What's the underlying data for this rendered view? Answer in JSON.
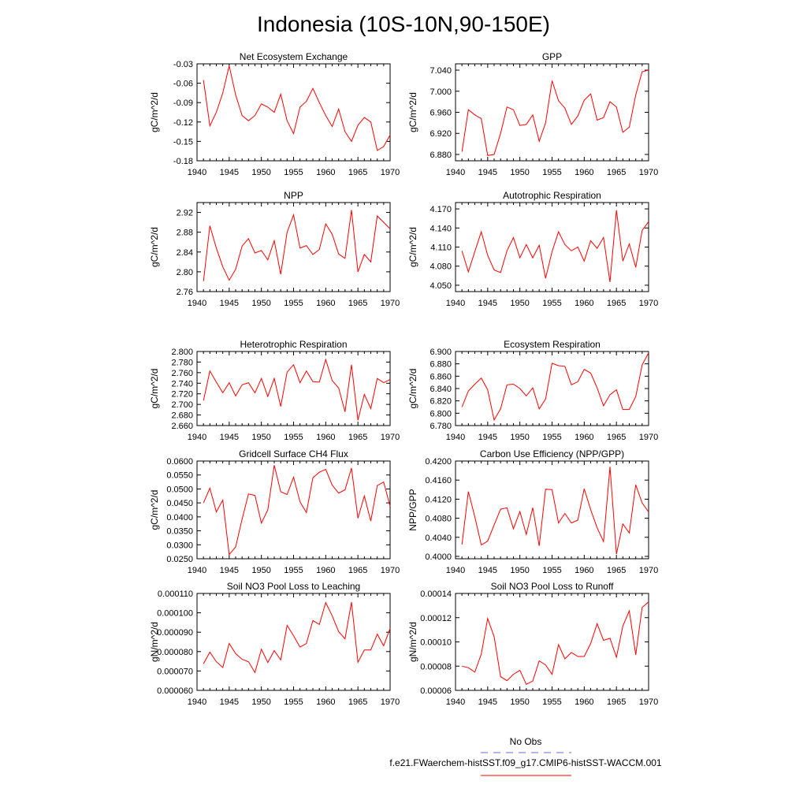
{
  "title": "Indonesia (10S-10N,90-150E)",
  "colors": {
    "model": "#ff0000",
    "obs": "#6a6ae6",
    "axis": "#000000"
  },
  "legend": {
    "obs_label": "No Obs",
    "model_label": "f.e21.FWaerchem-histSST.f09_g17.CMIP6-histSST-WACCM.001"
  },
  "chart_data": [
    {
      "type": "line",
      "title": "Net Ecosystem Exchange",
      "ylabel": "gC/m^2/d",
      "xlim": [
        1940,
        1970
      ],
      "ylim": [
        -0.18,
        -0.03
      ],
      "xticks": [
        "1940",
        "1945",
        "1950",
        "1955",
        "1960",
        "1965",
        "1970"
      ],
      "yticks": [
        "-0.03",
        "-0.06",
        "-0.09",
        "-0.12",
        "-0.15",
        "-0.18"
      ],
      "ytick_values": [
        -0.03,
        -0.06,
        -0.09,
        -0.12,
        -0.15,
        -0.18
      ],
      "x": [
        1941,
        1942,
        1943,
        1944,
        1945,
        1946,
        1947,
        1948,
        1949,
        1950,
        1951,
        1952,
        1953,
        1954,
        1955,
        1956,
        1957,
        1958,
        1959,
        1960,
        1961,
        1962,
        1963,
        1964,
        1965,
        1966,
        1967,
        1968,
        1969,
        1970
      ],
      "values": [
        -0.055,
        -0.126,
        -0.105,
        -0.075,
        -0.033,
        -0.078,
        -0.11,
        -0.118,
        -0.11,
        -0.092,
        -0.097,
        -0.105,
        -0.077,
        -0.118,
        -0.138,
        -0.097,
        -0.088,
        -0.068,
        -0.09,
        -0.11,
        -0.127,
        -0.1,
        -0.135,
        -0.15,
        -0.125,
        -0.113,
        -0.12,
        -0.164,
        -0.158,
        -0.14
      ]
    },
    {
      "type": "line",
      "title": "GPP",
      "ylabel": "gC/m^2/d",
      "xlim": [
        1940,
        1970
      ],
      "ylim": [
        6.868,
        7.052
      ],
      "xticks": [
        "1940",
        "1945",
        "1950",
        "1955",
        "1960",
        "1965",
        "1970"
      ],
      "yticks": [
        "7.040",
        "7.000",
        "6.960",
        "6.920",
        "6.880"
      ],
      "ytick_values": [
        7.04,
        7.0,
        6.96,
        6.92,
        6.88
      ],
      "x": [
        1941,
        1942,
        1943,
        1944,
        1945,
        1946,
        1947,
        1948,
        1949,
        1950,
        1951,
        1952,
        1953,
        1954,
        1955,
        1956,
        1957,
        1958,
        1959,
        1960,
        1961,
        1962,
        1963,
        1964,
        1965,
        1966,
        1967,
        1968,
        1969,
        1970
      ],
      "values": [
        6.885,
        6.965,
        6.955,
        6.948,
        6.878,
        6.88,
        6.92,
        6.97,
        6.965,
        6.935,
        6.937,
        6.955,
        6.905,
        6.94,
        7.02,
        6.982,
        6.968,
        6.937,
        6.953,
        6.983,
        6.995,
        6.945,
        6.95,
        6.98,
        6.97,
        6.922,
        6.932,
        6.993,
        7.037,
        7.04
      ]
    },
    {
      "type": "line",
      "title": "NPP",
      "ylabel": "gC/m^2/d",
      "xlim": [
        1940,
        1970
      ],
      "ylim": [
        2.76,
        2.94
      ],
      "xticks": [
        "1940",
        "1945",
        "1950",
        "1955",
        "1960",
        "1965",
        "1970"
      ],
      "yticks": [
        "2.92",
        "2.88",
        "2.84",
        "2.80",
        "2.76"
      ],
      "ytick_values": [
        2.92,
        2.88,
        2.84,
        2.8,
        2.76
      ],
      "x": [
        1941,
        1942,
        1943,
        1944,
        1945,
        1946,
        1947,
        1948,
        1949,
        1950,
        1951,
        1952,
        1953,
        1954,
        1955,
        1956,
        1957,
        1958,
        1959,
        1960,
        1961,
        1962,
        1963,
        1964,
        1965,
        1966,
        1967,
        1968,
        1969,
        1970
      ],
      "values": [
        2.781,
        2.893,
        2.848,
        2.81,
        2.783,
        2.805,
        2.852,
        2.867,
        2.838,
        2.843,
        2.824,
        2.863,
        2.795,
        2.88,
        2.915,
        2.848,
        2.853,
        2.835,
        2.845,
        2.897,
        2.876,
        2.836,
        2.827,
        2.925,
        2.8,
        2.835,
        2.82,
        2.913,
        2.9,
        2.887
      ]
    },
    {
      "type": "line",
      "title": "Autotrophic Respiration",
      "ylabel": "gC/m^2/d",
      "xlim": [
        1940,
        1970
      ],
      "ylim": [
        4.04,
        4.18
      ],
      "xticks": [
        "1940",
        "1945",
        "1950",
        "1955",
        "1960",
        "1965",
        "1970"
      ],
      "yticks": [
        "4.170",
        "4.140",
        "4.110",
        "4.080",
        "4.050"
      ],
      "ytick_values": [
        4.17,
        4.14,
        4.11,
        4.08,
        4.05
      ],
      "x": [
        1941,
        1942,
        1943,
        1944,
        1945,
        1946,
        1947,
        1948,
        1949,
        1950,
        1951,
        1952,
        1953,
        1954,
        1955,
        1956,
        1957,
        1958,
        1959,
        1960,
        1961,
        1962,
        1963,
        1964,
        1965,
        1966,
        1967,
        1968,
        1969,
        1970
      ],
      "values": [
        4.104,
        4.071,
        4.103,
        4.134,
        4.097,
        4.074,
        4.07,
        4.104,
        4.125,
        4.093,
        4.114,
        4.093,
        4.113,
        4.061,
        4.103,
        4.134,
        4.114,
        4.104,
        4.11,
        4.088,
        4.12,
        4.108,
        4.125,
        4.055,
        4.168,
        4.088,
        4.115,
        4.078,
        4.136,
        4.15
      ]
    },
    {
      "type": "line",
      "title": "Heterotrophic Respiration",
      "ylabel": "gC/m^2/d",
      "xlim": [
        1940,
        1970
      ],
      "ylim": [
        2.66,
        2.8
      ],
      "xticks": [
        "1940",
        "1945",
        "1950",
        "1955",
        "1960",
        "1965",
        "1970"
      ],
      "yticks": [
        "2.800",
        "2.780",
        "2.760",
        "2.740",
        "2.720",
        "2.700",
        "2.680",
        "2.660"
      ],
      "ytick_values": [
        2.8,
        2.78,
        2.76,
        2.74,
        2.72,
        2.7,
        2.68,
        2.66
      ],
      "x": [
        1941,
        1942,
        1943,
        1944,
        1945,
        1946,
        1947,
        1948,
        1949,
        1950,
        1951,
        1952,
        1953,
        1954,
        1955,
        1956,
        1957,
        1958,
        1959,
        1960,
        1961,
        1962,
        1963,
        1964,
        1965,
        1966,
        1967,
        1968,
        1969,
        1970
      ],
      "values": [
        2.707,
        2.763,
        2.742,
        2.722,
        2.741,
        2.716,
        2.737,
        2.741,
        2.722,
        2.749,
        2.715,
        2.749,
        2.696,
        2.761,
        2.775,
        2.741,
        2.763,
        2.743,
        2.742,
        2.785,
        2.745,
        2.731,
        2.686,
        2.775,
        2.67,
        2.719,
        2.692,
        2.749,
        2.741,
        2.747
      ]
    },
    {
      "type": "line",
      "title": "Ecosystem Respiration",
      "ylabel": "gC/m^2/d",
      "xlim": [
        1940,
        1970
      ],
      "ylim": [
        6.78,
        6.9
      ],
      "xticks": [
        "1940",
        "1945",
        "1950",
        "1955",
        "1960",
        "1965",
        "1970"
      ],
      "yticks": [
        "6.900",
        "6.880",
        "6.860",
        "6.840",
        "6.820",
        "6.800",
        "6.780"
      ],
      "ytick_values": [
        6.9,
        6.88,
        6.86,
        6.84,
        6.82,
        6.8,
        6.78
      ],
      "x": [
        1941,
        1942,
        1943,
        1944,
        1945,
        1946,
        1947,
        1948,
        1949,
        1950,
        1951,
        1952,
        1953,
        1954,
        1955,
        1956,
        1957,
        1958,
        1959,
        1960,
        1961,
        1962,
        1963,
        1964,
        1965,
        1966,
        1967,
        1968,
        1969,
        1970
      ],
      "values": [
        6.81,
        6.836,
        6.847,
        6.857,
        6.838,
        6.789,
        6.807,
        6.846,
        6.847,
        6.84,
        6.828,
        6.841,
        6.807,
        6.823,
        6.881,
        6.877,
        6.876,
        6.846,
        6.851,
        6.871,
        6.865,
        6.841,
        6.812,
        6.83,
        6.838,
        6.806,
        6.806,
        6.827,
        6.878,
        6.898
      ]
    },
    {
      "type": "line",
      "title": "Gridcell Surface CH4 Flux",
      "ylabel": "gC/m^2/d",
      "xlim": [
        1940,
        1970
      ],
      "ylim": [
        0.025,
        0.06
      ],
      "xticks": [
        "1940",
        "1945",
        "1950",
        "1955",
        "1960",
        "1965",
        "1970"
      ],
      "yticks": [
        "0.0600",
        "0.0550",
        "0.0500",
        "0.0450",
        "0.0400",
        "0.0350",
        "0.0300",
        "0.0250"
      ],
      "ytick_values": [
        0.06,
        0.055,
        0.05,
        0.045,
        0.04,
        0.035,
        0.03,
        0.025
      ],
      "x": [
        1941,
        1942,
        1943,
        1944,
        1945,
        1946,
        1947,
        1948,
        1949,
        1950,
        1951,
        1952,
        1953,
        1954,
        1955,
        1956,
        1957,
        1958,
        1959,
        1960,
        1961,
        1962,
        1963,
        1964,
        1965,
        1966,
        1967,
        1968,
        1969,
        1970
      ],
      "values": [
        0.045,
        0.0503,
        0.0418,
        0.046,
        0.0265,
        0.0292,
        0.0392,
        0.0482,
        0.0477,
        0.0378,
        0.0425,
        0.0585,
        0.049,
        0.048,
        0.0542,
        0.0454,
        0.0415,
        0.054,
        0.056,
        0.057,
        0.0514,
        0.0485,
        0.0497,
        0.0575,
        0.0395,
        0.0475,
        0.0385,
        0.0512,
        0.0525,
        0.0438
      ]
    },
    {
      "type": "line",
      "title": "Carbon Use Efficiency (NPP/GPP)",
      "ylabel": "NPP/GPP",
      "xlim": [
        1940,
        1970
      ],
      "ylim": [
        0.3995,
        0.42
      ],
      "xticks": [
        "1940",
        "1945",
        "1950",
        "1955",
        "1960",
        "1965",
        "1970"
      ],
      "yticks": [
        "0.4200",
        "0.4160",
        "0.4120",
        "0.4080",
        "0.4040",
        "0.4000"
      ],
      "ytick_values": [
        0.42,
        0.416,
        0.412,
        0.408,
        0.404,
        0.4
      ],
      "x": [
        1941,
        1942,
        1943,
        1944,
        1945,
        1946,
        1947,
        1948,
        1949,
        1950,
        1951,
        1952,
        1953,
        1954,
        1955,
        1956,
        1957,
        1958,
        1959,
        1960,
        1961,
        1962,
        1963,
        1964,
        1965,
        1966,
        1967,
        1968,
        1969,
        1970
      ],
      "values": [
        0.4025,
        0.4136,
        0.4083,
        0.4024,
        0.4032,
        0.4066,
        0.4099,
        0.4102,
        0.4058,
        0.4094,
        0.4046,
        0.4102,
        0.4022,
        0.4141,
        0.414,
        0.407,
        0.409,
        0.407,
        0.4076,
        0.4142,
        0.4098,
        0.406,
        0.4031,
        0.4188,
        0.4005,
        0.4068,
        0.4049,
        0.415,
        0.4112,
        0.4093
      ]
    },
    {
      "type": "line",
      "title": "Soil NO3 Pool Loss to Leaching",
      "ylabel": "gN/m^2/d",
      "xlim": [
        1940,
        1970
      ],
      "ylim": [
        6e-05,
        0.00011
      ],
      "xticks": [
        "1940",
        "1945",
        "1950",
        "1955",
        "1960",
        "1965",
        "1970"
      ],
      "yticks": [
        "0.000110",
        "0.000100",
        "0.000090",
        "0.000080",
        "0.000070",
        "0.000060"
      ],
      "ytick_values": [
        0.00011,
        0.0001,
        9e-05,
        8e-05,
        7e-05,
        6e-05
      ],
      "x": [
        1941,
        1942,
        1943,
        1944,
        1945,
        1946,
        1947,
        1948,
        1949,
        1950,
        1951,
        1952,
        1953,
        1954,
        1955,
        1956,
        1957,
        1958,
        1959,
        1960,
        1961,
        1962,
        1963,
        1964,
        1965,
        1966,
        1967,
        1968,
        1969,
        1970
      ],
      "values": [
        7.37e-05,
        7.97e-05,
        7.48e-05,
        7.18e-05,
        8.42e-05,
        7.9e-05,
        7.6e-05,
        7.48e-05,
        6.92e-05,
        8.12e-05,
        7.44e-05,
        8.05e-05,
        7.57e-05,
        9.35e-05,
        8.82e-05,
        8.23e-05,
        8.42e-05,
        9.6e-05,
        9.4e-05,
        0.0001053,
        9.85e-05,
        9.03e-05,
        8.66e-05,
        0.0001055,
        7.45e-05,
        8.08e-05,
        8.08e-05,
        8.9e-05,
        8.3e-05,
        9.2e-05
      ]
    },
    {
      "type": "line",
      "title": "Soil NO3 Pool Loss to Runoff",
      "ylabel": "gN/m^2/d",
      "xlim": [
        1940,
        1970
      ],
      "ylim": [
        6e-05,
        0.00014
      ],
      "xticks": [
        "1940",
        "1945",
        "1950",
        "1955",
        "1960",
        "1965",
        "1970"
      ],
      "yticks": [
        "0.00014",
        "0.00012",
        "0.00010",
        "0.00008",
        "0.00006"
      ],
      "ytick_values": [
        0.00014,
        0.00012,
        0.0001,
        8e-05,
        6e-05
      ],
      "x": [
        1941,
        1942,
        1943,
        1944,
        1945,
        1946,
        1947,
        1948,
        1949,
        1950,
        1951,
        1952,
        1953,
        1954,
        1955,
        1956,
        1957,
        1958,
        1959,
        1960,
        1961,
        1962,
        1963,
        1964,
        1965,
        1966,
        1967,
        1968,
        1969,
        1970
      ],
      "values": [
        8e-05,
        7.87e-05,
        7.5e-05,
        9e-05,
        0.0001193,
        0.0001043,
        7.13e-05,
        6.8e-05,
        7.33e-05,
        7.65e-05,
        6.5e-05,
        6.77e-05,
        8.43e-05,
        8.1e-05,
        7.33e-05,
        9.77e-05,
        8.6e-05,
        9.13e-05,
        8.8e-05,
        8.8e-05,
        9.87e-05,
        0.000115,
        0.0001013,
        0.000103,
        8.73e-05,
        0.000113,
        0.0001257,
        8.93e-05,
        0.0001285,
        0.000133
      ]
    }
  ]
}
